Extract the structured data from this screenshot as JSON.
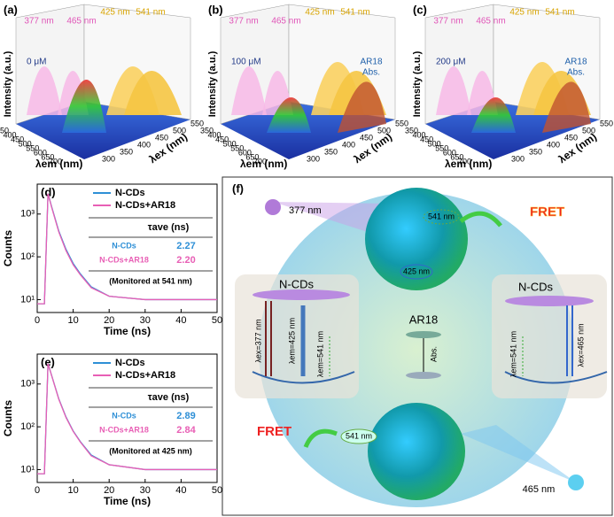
{
  "chart_data": [
    {
      "type": "line",
      "label": "(d)",
      "xlabel": "Time (ns)",
      "ylabel": "Counts",
      "log_scale": true,
      "x": [
        0,
        2,
        3,
        4,
        6,
        8,
        10,
        12,
        15,
        20,
        30,
        40,
        50
      ],
      "series": [
        {
          "name": "N-CDs",
          "color": "#2e8fd6",
          "values": [
            8,
            8,
            3000,
            1500,
            400,
            150,
            70,
            40,
            20,
            12,
            10,
            10,
            10
          ]
        },
        {
          "name": "N-CDs+AR18",
          "color": "#e85fb5",
          "values": [
            8,
            8,
            3000,
            1450,
            380,
            140,
            65,
            38,
            19,
            12,
            10,
            10,
            10
          ]
        }
      ],
      "xlim": [
        0,
        50
      ],
      "xticks": [
        0,
        10,
        20,
        30,
        40,
        50
      ],
      "ylim": [
        5,
        5000
      ],
      "yticks": [
        {
          "value": 10,
          "label": "10¹"
        },
        {
          "value": 100,
          "label": "10²"
        },
        {
          "value": 1000,
          "label": "10³"
        }
      ],
      "table": {
        "header": "τave (ns)",
        "rows": [
          [
            "N-CDs",
            2.27
          ],
          [
            "N-CDs+AR18",
            2.2
          ]
        ],
        "row_labels": [
          "2.27",
          "2.20"
        ],
        "note": "(Monitored at 541 nm)"
      }
    },
    {
      "type": "line",
      "label": "(e)",
      "xlabel": "Time (ns)",
      "ylabel": "Counts",
      "log_scale": true,
      "x": [
        0,
        2,
        3,
        4,
        6,
        8,
        10,
        12,
        15,
        20,
        30,
        40,
        50
      ],
      "series": [
        {
          "name": "N-CDs",
          "color": "#2e8fd6",
          "values": [
            8,
            8,
            3000,
            1600,
            450,
            170,
            80,
            45,
            22,
            13,
            10,
            10,
            10
          ]
        },
        {
          "name": "N-CDs+AR18",
          "color": "#e85fb5",
          "values": [
            8,
            8,
            3000,
            1580,
            440,
            165,
            78,
            44,
            21,
            13,
            10,
            10,
            10
          ]
        }
      ],
      "xlim": [
        0,
        50
      ],
      "xticks": [
        0,
        10,
        20,
        30,
        40,
        50
      ],
      "ylim": [
        5,
        5000
      ],
      "yticks": [
        {
          "value": 10,
          "label": "10¹"
        },
        {
          "value": 100,
          "label": "10²"
        },
        {
          "value": 1000,
          "label": "10³"
        }
      ],
      "table": {
        "header": "τave (ns)",
        "rows": [
          [
            "N-CDs",
            2.89
          ],
          [
            "N-CDs+AR18",
            2.84
          ]
        ],
        "row_labels": [
          "2.89",
          "2.84"
        ],
        "note": "(Monitored at 425 nm)"
      }
    }
  ],
  "panels_3d": {
    "labels": [
      "(a)",
      "(b)",
      "(c)"
    ],
    "concentrations": [
      "0 μM",
      "100 μM",
      "200 μM"
    ],
    "peaks": [
      "377 nm",
      "465 nm",
      "425 nm",
      "541 nm"
    ],
    "abs": [
      "AR18",
      "Abs."
    ],
    "ylabel": "Intensity (a.u.)",
    "em_label": "λem (nm)",
    "ex_label": "λex (nm)",
    "em_ticks": [
      350,
      400,
      450,
      500,
      550,
      600,
      650,
      700
    ],
    "ex_ticks": [
      300,
      350,
      400,
      450,
      500,
      550
    ]
  },
  "diagram": {
    "label": "(f)",
    "top_ex": "377 nm",
    "fret": "FRET",
    "emit": "541 nm",
    "blue_emit": "425 nm",
    "left": "N-CDs",
    "center": "AR18",
    "right": "N-CDs",
    "l_ex": "λex=377 nm",
    "l_em1": "λem=425 nm",
    "l_em2": "λem=541 nm",
    "abs": "Abs.",
    "r_em": "λem=541 nm",
    "r_ex": "λex=465 nm",
    "bottom_ex": "465 nm"
  }
}
